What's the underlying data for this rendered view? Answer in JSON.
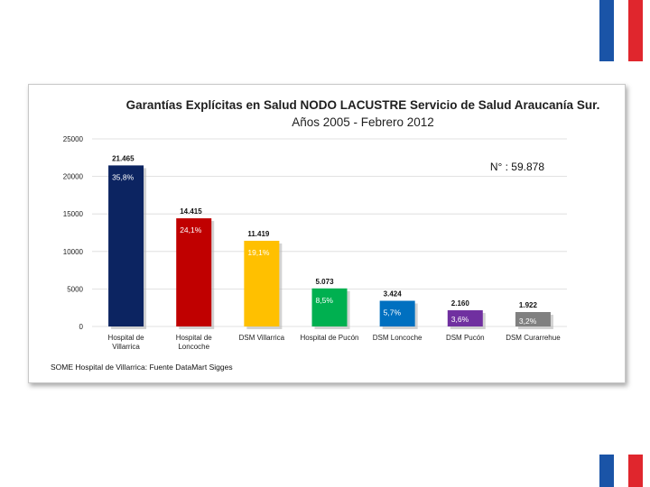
{
  "colors": {
    "flag_blue": "#1a54a7",
    "flag_white": "#ffffff",
    "flag_red": "#e0262d"
  },
  "chart_data": {
    "type": "bar",
    "title": "Garantías Explícitas en Salud NODO LACUSTRE Servicio de Salud Araucanía Sur.",
    "subtitle": "Años 2005 - Febrero 2012",
    "ylim": [
      0,
      25000
    ],
    "yticks": [
      0,
      5000,
      10000,
      15000,
      20000,
      25000
    ],
    "grid": true,
    "total_label": "N° : 59.878",
    "source": "SOME Hospital de Villarrica: Fuente  DataMart Sigges",
    "bars": [
      {
        "category": [
          "Hospital de",
          "Villarrica"
        ],
        "value": 21465,
        "value_label": "21.465",
        "pct_label": "35,8%",
        "color": "#0c2461"
      },
      {
        "category": [
          "Hospital de",
          "Loncoche"
        ],
        "value": 14415,
        "value_label": "14.415",
        "pct_label": "24,1%",
        "color": "#c00000"
      },
      {
        "category": [
          "DSM Villarrica"
        ],
        "value": 11419,
        "value_label": "11.419",
        "pct_label": "19,1%",
        "color": "#ffc000"
      },
      {
        "category": [
          "Hospital de Pucón"
        ],
        "value": 5073,
        "value_label": "5.073",
        "pct_label": "8,5%",
        "color": "#00b050"
      },
      {
        "category": [
          "DSM Loncoche"
        ],
        "value": 3424,
        "value_label": "3.424",
        "pct_label": "5,7%",
        "color": "#0070c0"
      },
      {
        "category": [
          "DSM Pucón"
        ],
        "value": 2160,
        "value_label": "2.160",
        "pct_label": "3,6%",
        "color": "#7030a0"
      },
      {
        "category": [
          "DSM Curarrehue"
        ],
        "value": 1922,
        "value_label": "1.922",
        "pct_label": "3,2%",
        "color": "#808080"
      }
    ]
  }
}
